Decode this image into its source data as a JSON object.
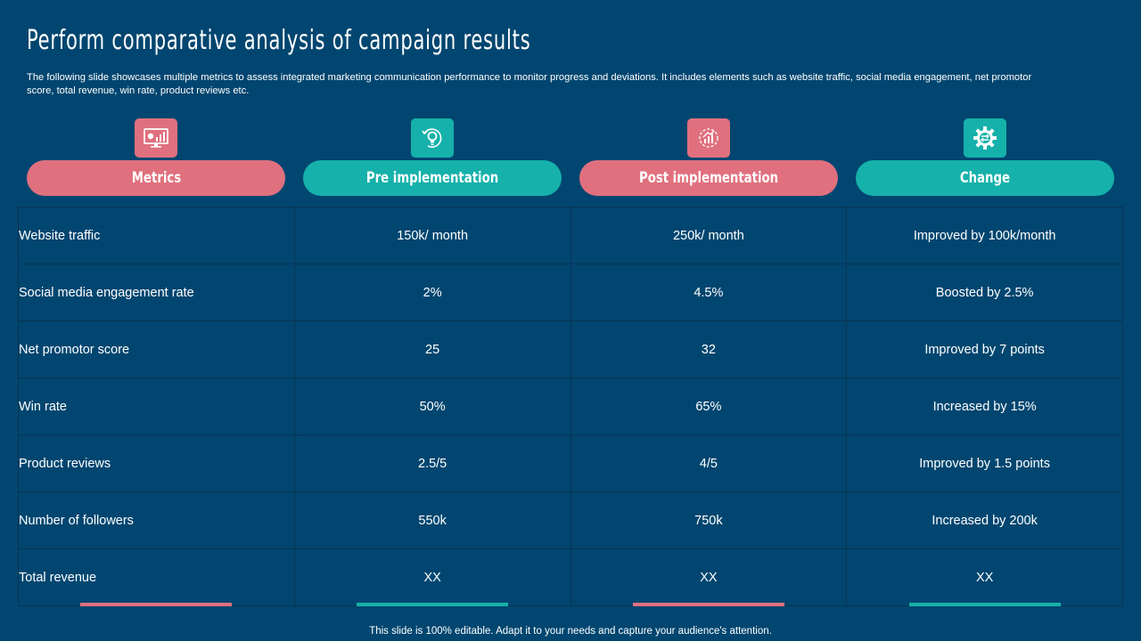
{
  "title": "Perform comparative analysis of campaign results",
  "subtitle": "The following slide showcases multiple metrics to assess integrated marketing communication performance to monitor progress and deviations. It includes elements such as website traffic, social media engagement, net promotor score, total revenue, win rate, product reviews etc.",
  "colors": {
    "background": "#014670",
    "pink": "#e0707e",
    "teal": "#15b1aa"
  },
  "headers": [
    {
      "label": "Metrics",
      "icon": "monitor-chart-icon"
    },
    {
      "label": "Pre implementation",
      "icon": "bulb-gear-icon"
    },
    {
      "label": "Post implementation",
      "icon": "growth-chart-icon"
    },
    {
      "label": "Change",
      "icon": "gear-arrows-icon"
    }
  ],
  "rows": [
    [
      "Website traffic",
      "150k/ month",
      "250k/ month",
      "Improved by 100k/month"
    ],
    [
      "Social media engagement rate",
      "2%",
      "4.5%",
      "Boosted by 2.5%"
    ],
    [
      "Net promotor score",
      "25",
      "32",
      "Improved by 7 points"
    ],
    [
      "Win rate",
      "50%",
      "65%",
      "Increased by 15%"
    ],
    [
      "Product reviews",
      "2.5/5",
      "4/5",
      "Improved by 1.5 points"
    ],
    [
      "Number of followers",
      "550k",
      "750k",
      "Increased by 200k"
    ],
    [
      "Total revenue",
      "XX",
      "XX",
      "XX"
    ]
  ],
  "footer": "This slide is 100% editable. Adapt it to your needs and capture your audience's attention."
}
